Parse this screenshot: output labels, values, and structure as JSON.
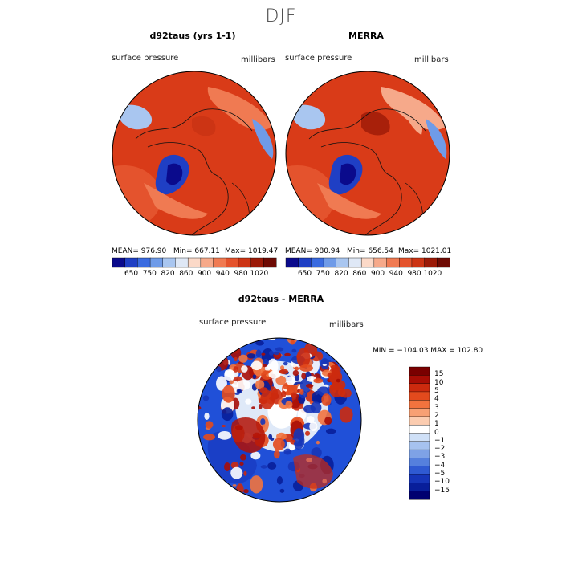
{
  "page_title": "DJF",
  "panels": [
    {
      "title": "d92taus (yrs 1-1)",
      "subtitle_left": "surface pressure",
      "subtitle_right": "millibars",
      "stats": {
        "mean": "MEAN= 976.90",
        "min": "Min= 667.11",
        "max": "Max= 1019.47"
      }
    },
    {
      "title": "MERRA",
      "subtitle_left": "surface pressure",
      "subtitle_right": "millibars",
      "stats": {
        "mean": "MEAN= 980.94",
        "min": "Min= 656.54",
        "max": "Max= 1021.01"
      }
    },
    {
      "title": "d92taus - MERRA",
      "subtitle_left": "surface pressure",
      "subtitle_right": "millibars",
      "stats_text": "MIN = −104.03 MAX = 102.80"
    }
  ],
  "colorbar_horizontal": {
    "ticks": [
      "650",
      "750",
      "820",
      "860",
      "900",
      "940",
      "980",
      "1020"
    ],
    "colors": [
      "#0a0a8c",
      "#1f3fc4",
      "#3a6be0",
      "#6f9be8",
      "#a9c6f0",
      "#dfe8f6",
      "#fbd9c8",
      "#f6a98a",
      "#f07a52",
      "#e4532d",
      "#cc3414",
      "#9b1a08",
      "#6e0a04"
    ]
  },
  "colorbar_vertical": {
    "ticks": [
      "15",
      "10",
      "5",
      "4",
      "3",
      "2",
      "1",
      "0",
      "−1",
      "−2",
      "−3",
      "−4",
      "−5",
      "−10",
      "−15"
    ],
    "colors": [
      "#7a0000",
      "#a80d05",
      "#cc2a0e",
      "#e34a1d",
      "#f2733e",
      "#f7a074",
      "#fbccb0",
      "#ffffff",
      "#cfe0f7",
      "#a6c2ef",
      "#7ea2e6",
      "#5580dd",
      "#2f5ad2",
      "#1635b8",
      "#081e9a",
      "#000070"
    ]
  },
  "chart_data": [
    {
      "type": "heatmap",
      "title": "d92taus (yrs 1-1)",
      "projection": "north polar stereographic",
      "variable": "surface pressure",
      "units": "millibars",
      "mean": 976.9,
      "min": 667.11,
      "max": 1019.47,
      "colorbar_ticks": [
        650,
        750,
        820,
        860,
        900,
        940,
        980,
        1020
      ]
    },
    {
      "type": "heatmap",
      "title": "MERRA",
      "projection": "north polar stereographic",
      "variable": "surface pressure",
      "units": "millibars",
      "mean": 980.94,
      "min": 656.54,
      "max": 1021.01,
      "colorbar_ticks": [
        650,
        750,
        820,
        860,
        900,
        940,
        980,
        1020
      ]
    },
    {
      "type": "heatmap",
      "title": "d92taus - MERRA",
      "projection": "north polar stereographic",
      "variable": "surface pressure",
      "units": "millibars",
      "min": -104.03,
      "max": 102.8,
      "colorbar_ticks": [
        15,
        10,
        5,
        4,
        3,
        2,
        1,
        0,
        -1,
        -2,
        -3,
        -4,
        -5,
        -10,
        -15
      ]
    }
  ]
}
